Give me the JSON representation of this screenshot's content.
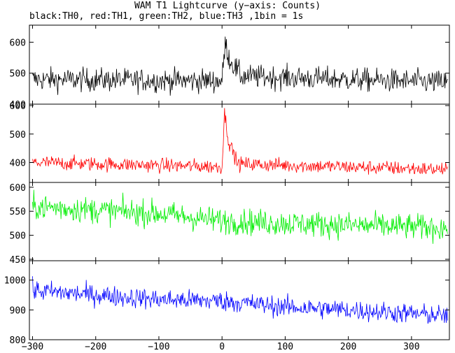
{
  "title": "WAM T1 Lightcurve (y−axis: Counts)",
  "subtitle": "black:TH0, red:TH1, green:TH2, blue:TH3 ,1bin = 1s",
  "chart_data": {
    "type": "line",
    "xlim": [
      -305,
      360
    ],
    "x_ticks": [
      -300,
      -200,
      -100,
      0,
      100,
      200,
      300
    ],
    "x_tick_labels": [
      "−300",
      "−200",
      "−100",
      "0",
      "100",
      "200",
      "300"
    ],
    "grid": false,
    "bin_seconds": 1,
    "panels": [
      {
        "name": "TH0",
        "color": "#000000",
        "ylim": [
          400,
          655
        ],
        "y_ticks": [
          400,
          500,
          600
        ],
        "baseline": [
          [
            -300,
            480
          ],
          [
            0,
            475
          ],
          [
            5,
            595
          ],
          [
            12,
            545
          ],
          [
            30,
            490
          ],
          [
            360,
            470
          ]
        ],
        "noise": 42
      },
      {
        "name": "TH1",
        "color": "#ff0000",
        "ylim": [
          330,
          605
        ],
        "y_ticks": [
          400,
          500,
          600
        ],
        "baseline": [
          [
            -300,
            400
          ],
          [
            0,
            385
          ],
          [
            4,
            575
          ],
          [
            10,
            480
          ],
          [
            25,
            395
          ],
          [
            360,
            375
          ]
        ],
        "noise": 28
      },
      {
        "name": "TH2",
        "color": "#00ee00",
        "ylim": [
          447,
          610
        ],
        "y_ticks": [
          450,
          500,
          550,
          600
        ],
        "baseline": [
          [
            -300,
            560
          ],
          [
            -100,
            545
          ],
          [
            0,
            530
          ],
          [
            100,
            525
          ],
          [
            360,
            515
          ]
        ],
        "noise": 30
      },
      {
        "name": "TH3",
        "color": "#0000ff",
        "ylim": [
          800,
          1065
        ],
        "y_ticks": [
          800,
          900,
          1000
        ],
        "baseline": [
          [
            -300,
            965
          ],
          [
            -200,
            950
          ],
          [
            -100,
            935
          ],
          [
            0,
            930
          ],
          [
            100,
            910
          ],
          [
            200,
            900
          ],
          [
            360,
            880
          ]
        ],
        "noise": 38
      }
    ]
  }
}
